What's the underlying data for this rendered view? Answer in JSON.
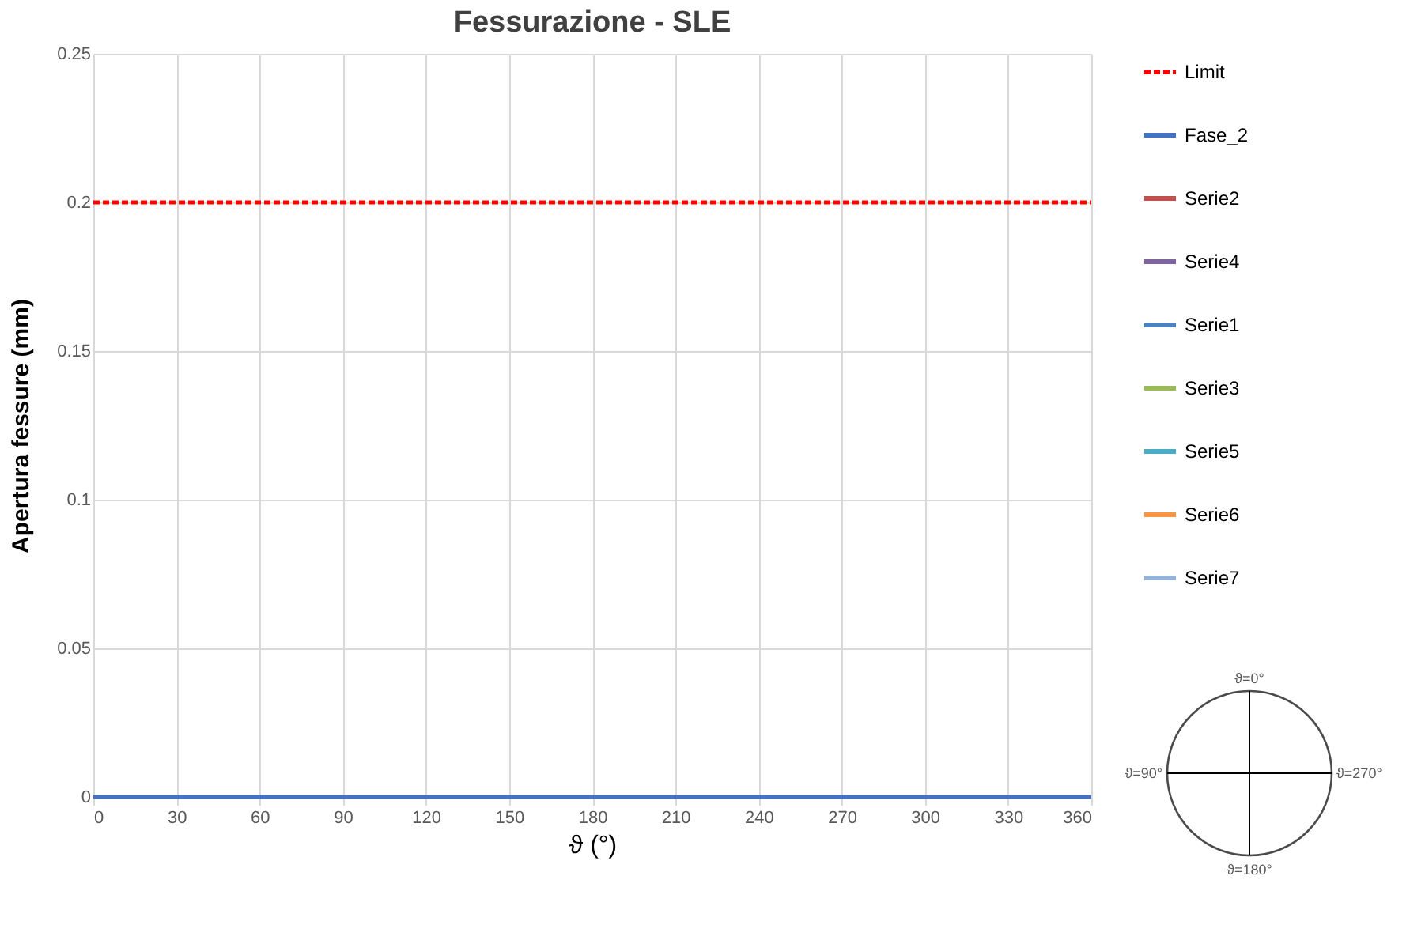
{
  "chart_data": {
    "type": "line",
    "title": "Fessurazione - SLE",
    "xlabel": "ϑ (°)",
    "ylabel": "Apertura fessure (mm)",
    "x": [
      0,
      360
    ],
    "series": [
      {
        "name": "Limit",
        "color": "#ff0000",
        "line_style": "dashed",
        "values": [
          0.2,
          0.2
        ]
      },
      {
        "name": "Fase_2",
        "color": "#4472c4",
        "line_style": "solid",
        "values": [
          0,
          0
        ]
      },
      {
        "name": "Serie2",
        "color": "#c0504d",
        "line_style": "solid",
        "values": [
          null,
          null
        ]
      },
      {
        "name": "Serie4",
        "color": "#8064a2",
        "line_style": "solid",
        "values": [
          null,
          null
        ]
      },
      {
        "name": "Serie1",
        "color": "#4f81bd",
        "line_style": "solid",
        "values": [
          null,
          null
        ]
      },
      {
        "name": "Serie3",
        "color": "#9bbb59",
        "line_style": "solid",
        "values": [
          null,
          null
        ]
      },
      {
        "name": "Serie5",
        "color": "#4bacc6",
        "line_style": "solid",
        "values": [
          null,
          null
        ]
      },
      {
        "name": "Serie6",
        "color": "#f79646",
        "line_style": "solid",
        "values": [
          null,
          null
        ]
      },
      {
        "name": "Serie7",
        "color": "#95b3d7",
        "line_style": "solid",
        "values": [
          null,
          null
        ]
      }
    ],
    "xlim": [
      0,
      360
    ],
    "xticks": [
      0,
      30,
      60,
      90,
      120,
      150,
      180,
      210,
      240,
      270,
      300,
      330,
      360
    ],
    "ylim": [
      0,
      0.25
    ],
    "yticks": [
      0,
      0.05,
      0.1,
      0.15,
      0.2,
      0.25
    ],
    "grid": true,
    "legend": "right",
    "marker": "none",
    "annotations": [
      "ϑ=0°",
      "ϑ=90°",
      "ϑ=180°",
      "ϑ=270°"
    ]
  }
}
